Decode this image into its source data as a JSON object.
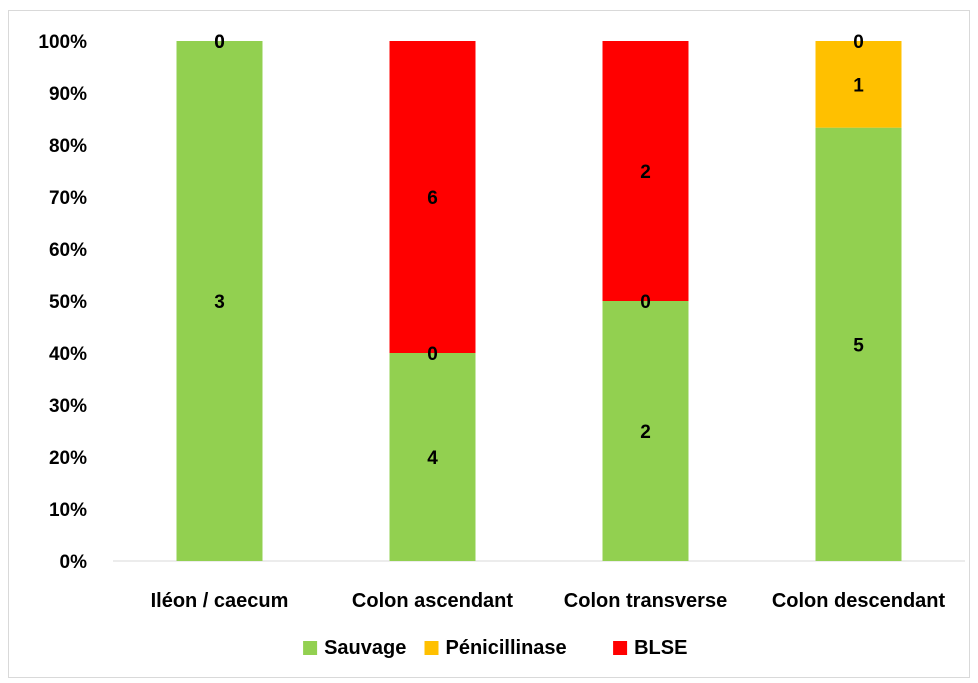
{
  "chart_data": {
    "type": "bar",
    "stacked": true,
    "normalized": true,
    "categories": [
      "Iléon / caecum",
      "Colon ascendant",
      "Colon transverse",
      "Colon descendant"
    ],
    "series": [
      {
        "name": "Sauvage",
        "color": "#92d050",
        "values": [
          3,
          4,
          2,
          5
        ]
      },
      {
        "name": "Pénicillinase",
        "color": "#ffc000",
        "values": [
          0,
          0,
          0,
          1
        ]
      },
      {
        "name": "BLSE",
        "color": "#ff0000",
        "values": [
          0,
          6,
          2,
          0
        ]
      }
    ],
    "y_ticks": [
      "0%",
      "10%",
      "20%",
      "30%",
      "40%",
      "50%",
      "60%",
      "70%",
      "80%",
      "90%",
      "100%"
    ],
    "ylim": [
      0,
      100
    ],
    "grid": false,
    "legend_position": "bottom",
    "title": "",
    "xlabel": "",
    "ylabel": ""
  }
}
